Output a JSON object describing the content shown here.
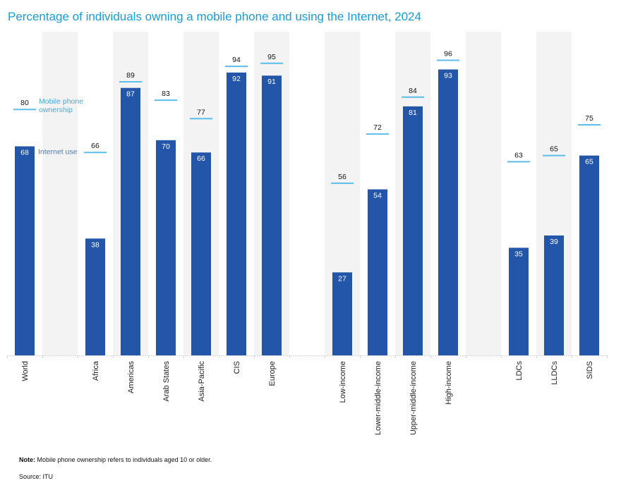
{
  "chart_data": {
    "type": "bar",
    "title": "Percentage of individuals owning a mobile phone and using the Internet, 2024",
    "xlabel": "",
    "ylabel": "",
    "ylim": [
      0,
      100
    ],
    "grid": false,
    "categories": [
      "World",
      "",
      "Africa",
      "Americas",
      "Arab States",
      "Asia-Pacific",
      "CIS",
      "Europe",
      "",
      "Low-income",
      "Lower-middle-income",
      "Upper-middle-income",
      "High-income",
      "",
      "LDCs",
      "LLDCs",
      "SIDS"
    ],
    "series": [
      {
        "name": "Internet use",
        "mark": "bar",
        "color": "#2356a8",
        "values": [
          68,
          null,
          38,
          87,
          70,
          66,
          92,
          91,
          null,
          27,
          54,
          81,
          93,
          null,
          35,
          39,
          65
        ]
      },
      {
        "name": "Mobile phone ownership",
        "mark": "line-marker",
        "color": "#5bbde8",
        "values": [
          80,
          null,
          66,
          89,
          83,
          77,
          94,
          95,
          null,
          56,
          72,
          84,
          96,
          null,
          63,
          65,
          75
        ]
      }
    ],
    "legend": {
      "placement": "inline-left",
      "items": [
        {
          "label": "Mobile phone ownership",
          "lines": [
            "Mobile phone",
            "ownership"
          ],
          "color": "#4aa8dc"
        },
        {
          "label": "Internet use",
          "lines": [
            "Internet use"
          ],
          "color": "#4f79b4"
        }
      ]
    },
    "band_color": "#f3f3f3"
  },
  "footer": {
    "note_label": "Note:",
    "note_text": " Mobile phone ownership refers to individuals aged 10 or older.",
    "source": "Source: ITU"
  }
}
